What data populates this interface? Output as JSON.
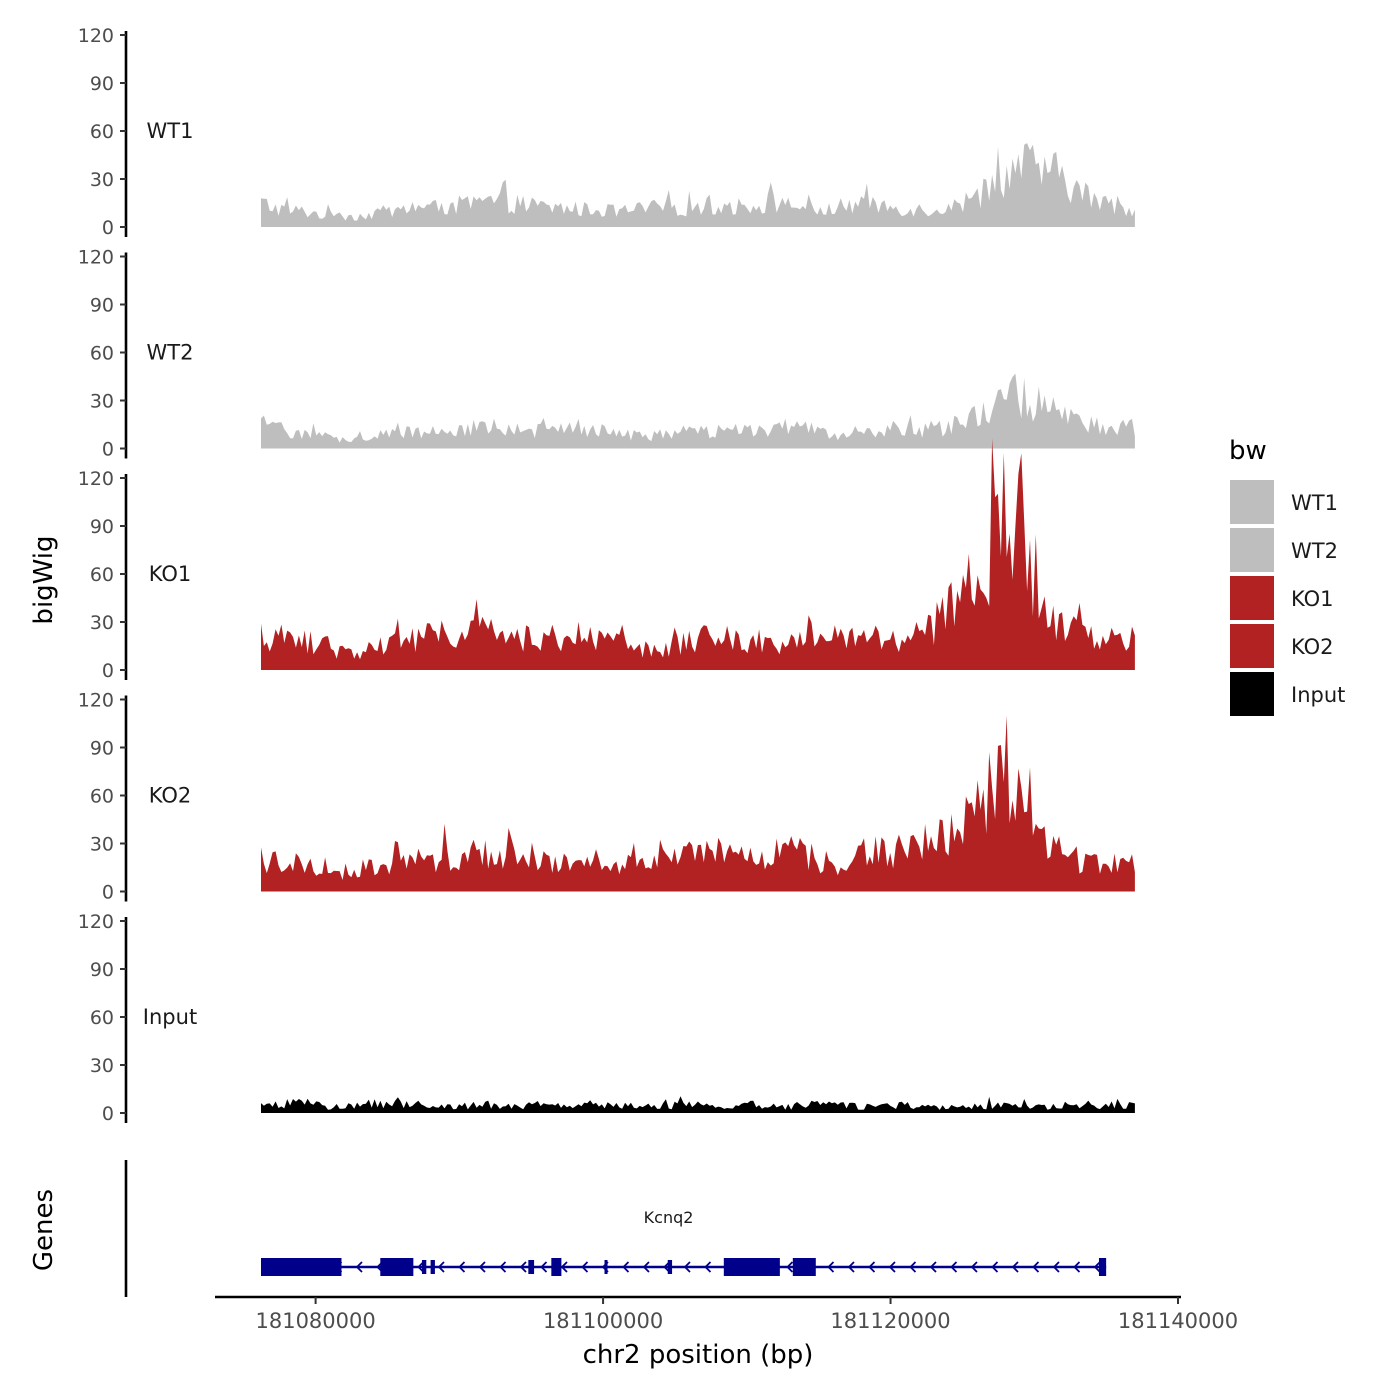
{
  "chart_data": {
    "type": "area",
    "title": "",
    "xlabel": "chr2 position (bp)",
    "ylabel": "bigWig",
    "genes_label": "Genes",
    "xlim": [
      181073000,
      181140000
    ],
    "x_ticks": [
      181080000,
      181100000,
      181120000,
      181140000
    ],
    "x_tick_labels": [
      "181080000",
      "181100000",
      "181120000",
      "181140000"
    ],
    "ylim": [
      0,
      120
    ],
    "y_ticks": [
      0,
      30,
      60,
      90,
      120
    ],
    "y_tick_labels": [
      "0",
      "30",
      "60",
      "90",
      "120"
    ],
    "signal_start": 181076200,
    "signal_end": 181137000,
    "legend": {
      "title": "bw",
      "position": "right",
      "entries": [
        {
          "label": "WT1",
          "color": "#BEBEBE"
        },
        {
          "label": "WT2",
          "color": "#BEBEBE"
        },
        {
          "label": "KO1",
          "color": "#B22222"
        },
        {
          "label": "KO2",
          "color": "#B22222"
        },
        {
          "label": "Input",
          "color": "#000000"
        }
      ]
    },
    "series": [
      {
        "name": "WT1",
        "color": "#BEBEBE",
        "base": [
          15,
          12,
          10,
          10,
          8,
          7,
          7,
          7,
          9,
          10,
          11,
          12,
          12,
          13,
          14,
          15,
          16,
          15,
          14,
          13,
          12,
          12,
          11,
          11,
          10,
          10,
          11,
          12,
          12,
          12,
          12,
          13,
          13,
          13,
          14,
          15,
          14,
          12,
          10,
          11,
          13,
          14,
          14,
          13,
          12,
          11,
          11,
          12,
          14,
          18,
          25,
          32,
          37,
          38,
          35,
          31,
          24,
          18,
          14,
          12,
          11
        ]
      },
      {
        "name": "WT2",
        "color": "#BEBEBE",
        "base": [
          15,
          13,
          11,
          10,
          8,
          7,
          6,
          6,
          8,
          9,
          10,
          11,
          11,
          12,
          13,
          14,
          13,
          12,
          11,
          11,
          11,
          12,
          12,
          11,
          10,
          9,
          8,
          8,
          9,
          10,
          10,
          10,
          11,
          11,
          12,
          13,
          14,
          13,
          11,
          9,
          9,
          10,
          11,
          11,
          11,
          11,
          12,
          13,
          15,
          19,
          26,
          32,
          33,
          30,
          26,
          21,
          17,
          14,
          13,
          13,
          13
        ]
      },
      {
        "name": "KO1",
        "color": "#B22222",
        "base": [
          22,
          20,
          19,
          18,
          16,
          13,
          11,
          12,
          16,
          18,
          19,
          20,
          21,
          22,
          23,
          24,
          23,
          21,
          20,
          19,
          20,
          21,
          21,
          19,
          17,
          15,
          13,
          12,
          14,
          17,
          19,
          21,
          20,
          19,
          18,
          17,
          18,
          20,
          21,
          20,
          19,
          18,
          18,
          19,
          20,
          21,
          26,
          35,
          45,
          56,
          72,
          100,
          85,
          50,
          34,
          26,
          23,
          21,
          20,
          20,
          20
        ]
      },
      {
        "name": "KO2",
        "color": "#B22222",
        "base": [
          20,
          19,
          18,
          17,
          16,
          14,
          12,
          13,
          16,
          17,
          18,
          20,
          21,
          23,
          24,
          25,
          25,
          24,
          22,
          21,
          21,
          22,
          21,
          19,
          18,
          17,
          17,
          18,
          20,
          22,
          24,
          24,
          22,
          21,
          22,
          25,
          27,
          25,
          20,
          17,
          18,
          21,
          24,
          25,
          26,
          27,
          30,
          36,
          42,
          50,
          62,
          80,
          70,
          45,
          30,
          23,
          20,
          19,
          18,
          18,
          18
        ]
      },
      {
        "name": "Input",
        "color": "#000000",
        "base": [
          4,
          5,
          7,
          6,
          5,
          4,
          4,
          5,
          6,
          5,
          5,
          5,
          4,
          4,
          5,
          5,
          5,
          4,
          4,
          5,
          5,
          4,
          4,
          5,
          5,
          5,
          4,
          4,
          5,
          5,
          5,
          4,
          4,
          5,
          5,
          4,
          4,
          5,
          5,
          5,
          5,
          4,
          4,
          5,
          5,
          4,
          4,
          4,
          5,
          5,
          5,
          5,
          5,
          4,
          4,
          5,
          5,
          5,
          5,
          5,
          5
        ]
      }
    ],
    "gene": {
      "name": "Kcnq2",
      "strand": "-",
      "color": "#00008B",
      "start": 181076200,
      "end": 181135000,
      "exons": [
        [
          181076200,
          181081800
        ],
        [
          181084500,
          181086800
        ],
        [
          181087400,
          181087700
        ],
        [
          181088000,
          181088300
        ],
        [
          181094800,
          181095200
        ],
        [
          181096400,
          181097100
        ],
        [
          181100100,
          181100300
        ],
        [
          181104500,
          181104800
        ],
        [
          181108400,
          181112300
        ],
        [
          181113200,
          181114800
        ],
        [
          181134500,
          181135000
        ]
      ]
    }
  }
}
